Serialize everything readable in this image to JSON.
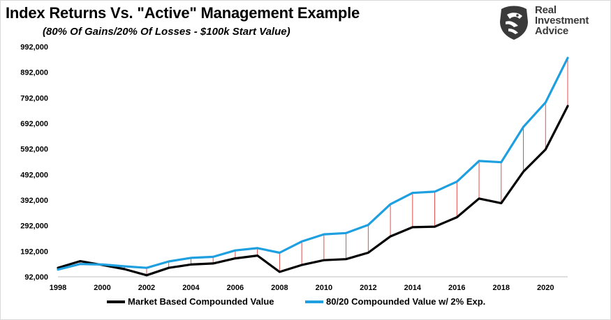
{
  "title": "Index Returns Vs. \"Active\" Management Example",
  "subtitle": "(80% Of Gains/20% Of Losses - $100k Start Value)",
  "logo": {
    "lines": [
      "Real",
      "Investment",
      "Advice"
    ],
    "icon": "eagle-head-icon"
  },
  "chart_data": {
    "type": "line",
    "x": [
      1998,
      1999,
      2000,
      2001,
      2002,
      2003,
      2004,
      2005,
      2006,
      2007,
      2008,
      2009,
      2010,
      2011,
      2012,
      2013,
      2014,
      2015,
      2016,
      2017,
      2018,
      2019,
      2020,
      2021
    ],
    "series": [
      {
        "name": "Market Based Compounded Value",
        "color": "#000000",
        "values": [
          127000,
          153000,
          138000,
          122000,
          98000,
          127000,
          140000,
          144000,
          164000,
          175000,
          111000,
          138000,
          157000,
          161000,
          186000,
          250000,
          286000,
          288000,
          325000,
          398000,
          380000,
          503000,
          590000,
          760000
        ]
      },
      {
        "name": "80/20 Compounded Value w/ 2% Exp.",
        "color": "#1e9fe0",
        "values": [
          120000,
          142000,
          140000,
          133000,
          127000,
          152000,
          166000,
          170000,
          195000,
          204000,
          186000,
          230000,
          258000,
          263000,
          295000,
          376000,
          420000,
          425000,
          464000,
          545000,
          540000,
          678000,
          774000,
          948000
        ]
      }
    ],
    "diff_lines_color": "#e23a3a",
    "xticks": [
      "1998",
      "2000",
      "2002",
      "2004",
      "2006",
      "2008",
      "2010",
      "2012",
      "2014",
      "2016",
      "2018",
      "2020"
    ],
    "yticks": [
      "92,000",
      "192,000",
      "292,000",
      "392,000",
      "492,000",
      "592,000",
      "692,000",
      "792,000",
      "892,000",
      "992,000"
    ],
    "ylim": [
      92000,
      992000
    ],
    "xlim": [
      1998,
      2021
    ],
    "grid": false,
    "legend_position": "bottom"
  }
}
